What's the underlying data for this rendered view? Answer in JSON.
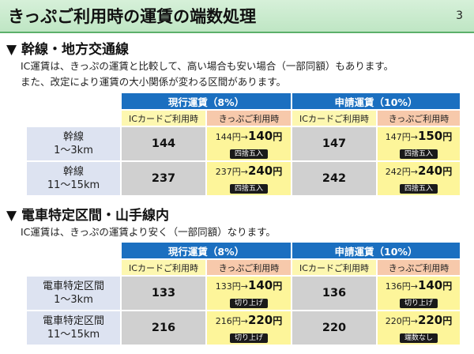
{
  "slide": {
    "title": "きっぷご利用時の運賃の端数処理",
    "page_number": "3"
  },
  "section1": {
    "heading": "▼ 幹線・地方交通線",
    "line1": "IC運賃は、きっぷの運賃と比較して、高い場合も安い場合（一部同額）もあります。",
    "line2": "また、改定により運賃の大小関係が変わる区間があります。",
    "table": {
      "group_current": "現行運賃（8%）",
      "group_applied": "申請運賃（10%）",
      "sub_ic": "ICカードご利用時",
      "sub_kippu": "きっぷご利用時",
      "rows": [
        {
          "label1": "幹線",
          "label2": "1～3km",
          "cur_ic": "144",
          "cur_kp_from": "144円",
          "cur_kp_to": "140",
          "cur_kp_badge": "四捨五入",
          "app_ic": "147",
          "app_kp_from": "147円",
          "app_kp_to": "150",
          "app_kp_badge": "四捨五入"
        },
        {
          "label1": "幹線",
          "label2": "11～15km",
          "cur_ic": "237",
          "cur_kp_from": "237円",
          "cur_kp_to": "240",
          "cur_kp_badge": "四捨五入",
          "app_ic": "242",
          "app_kp_from": "242円",
          "app_kp_to": "240",
          "app_kp_badge": "四捨五入"
        }
      ]
    }
  },
  "section2": {
    "heading": "▼ 電車特定区間・山手線内",
    "line1": "IC運賃は、きっぷの運賃より安く（一部同額）なります。",
    "table": {
      "group_current": "現行運賃（8%）",
      "group_applied": "申請運賃（10%）",
      "sub_ic": "ICカードご利用時",
      "sub_kippu": "きっぷご利用時",
      "rows": [
        {
          "label1": "電車特定区間",
          "label2": "1～3km",
          "cur_ic": "133",
          "cur_kp_from": "133円",
          "cur_kp_to": "140",
          "cur_kp_badge": "切り上げ",
          "app_ic": "136",
          "app_kp_from": "136円",
          "app_kp_to": "140",
          "app_kp_badge": "切り上げ"
        },
        {
          "label1": "電車特定区間",
          "label2": "11～15km",
          "cur_ic": "216",
          "cur_kp_from": "216円",
          "cur_kp_to": "220",
          "cur_kp_badge": "切り上げ",
          "app_ic": "220",
          "app_kp_from": "220円",
          "app_kp_to": "220",
          "app_kp_badge": "端数なし"
        }
      ]
    }
  },
  "common": {
    "arrow": "→",
    "yen": "円"
  },
  "colors": {
    "title_bar": "#bfe6c4",
    "header_blue": "#1b6fc0",
    "ic_header": "#fdf7b0",
    "kippu_header": "#f7c9ab",
    "row_label": "#dde3f1",
    "ic_cell": "#d0d0d0",
    "kippu_cell": "#fdf59a",
    "badge": "#1a1a1a"
  }
}
